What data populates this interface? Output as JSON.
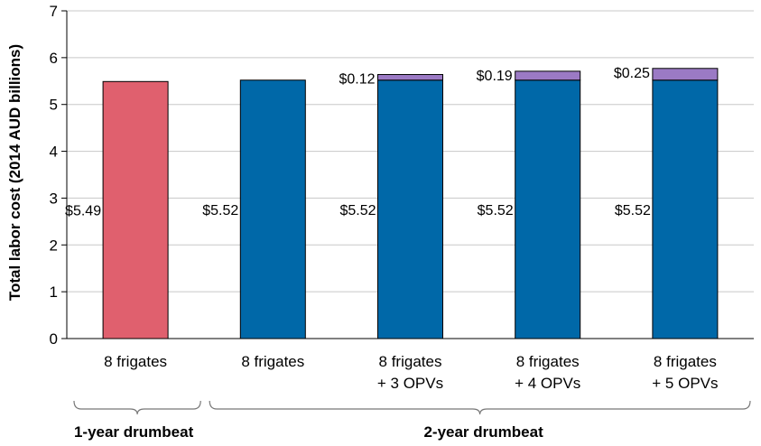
{
  "chart_data": {
    "type": "bar",
    "stacked": true,
    "ylabel": "Total labor cost (2014 AUD billions)",
    "xlabel": "",
    "ylim": [
      0,
      7
    ],
    "yticks": [
      "0",
      "1",
      "2",
      "3",
      "4",
      "5",
      "6",
      "7"
    ],
    "grid": "y",
    "categories": [
      [
        "8 frigates"
      ],
      [
        "8 frigates"
      ],
      [
        "8 frigates",
        "+ 3 OPVs"
      ],
      [
        "8 frigates",
        "+ 4 OPVs"
      ],
      [
        "8 frigates",
        "+ 5 OPVs"
      ]
    ],
    "bars": [
      {
        "base": 5.49,
        "top": 0,
        "base_label": "$5.49",
        "top_label": "",
        "base_color": "#e0606e"
      },
      {
        "base": 5.52,
        "top": 0,
        "base_label": "$5.52",
        "top_label": "",
        "base_color": "#0068a8"
      },
      {
        "base": 5.52,
        "top": 0.12,
        "base_label": "$5.52",
        "top_label": "$0.12",
        "base_color": "#0068a8"
      },
      {
        "base": 5.52,
        "top": 0.19,
        "base_label": "$5.52",
        "top_label": "$0.19",
        "base_color": "#0068a8"
      },
      {
        "base": 5.52,
        "top": 0.25,
        "base_label": "$5.52",
        "top_label": "$0.25",
        "base_color": "#0068a8"
      }
    ],
    "top_color": "#9b7ac4",
    "grid_color": "#c8c8c8",
    "groups": [
      {
        "label": "1-year drumbeat",
        "from": 0,
        "to": 0
      },
      {
        "label": "2-year drumbeat",
        "from": 1,
        "to": 4
      }
    ]
  }
}
